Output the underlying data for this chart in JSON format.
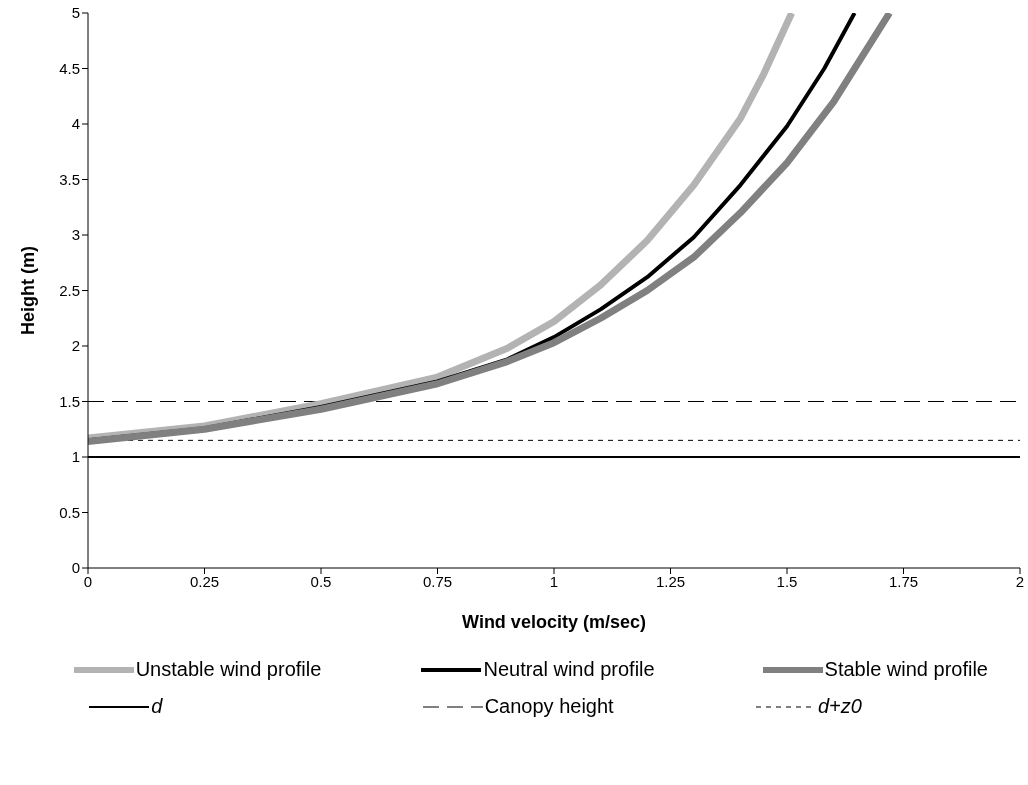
{
  "chart_data": {
    "type": "line",
    "xlabel": "Wind velocity (m/sec)",
    "ylabel": "Height (m)",
    "xlim": [
      0,
      2
    ],
    "xticks": [
      0,
      0.25,
      0.5,
      0.75,
      1,
      1.25,
      1.5,
      1.75,
      2
    ],
    "ylim": [
      0,
      5
    ],
    "yticks": [
      0,
      0.5,
      1,
      1.5,
      2,
      2.5,
      3,
      3.5,
      4,
      4.5,
      5
    ],
    "legend": "bottom",
    "marker": "none",
    "series": [
      {
        "name": "Unstable wind profile",
        "color": "#b3b3b3",
        "x": [
          0,
          0.25,
          0.5,
          0.75,
          0.9,
          1.0,
          1.1,
          1.2,
          1.3,
          1.4,
          1.45,
          1.51
        ],
        "values": [
          1.17,
          1.28,
          1.48,
          1.72,
          1.98,
          2.22,
          2.55,
          2.95,
          3.45,
          4.05,
          4.45,
          5
        ]
      },
      {
        "name": "Neutral wind profile",
        "color": "#000000",
        "x": [
          0,
          0.25,
          0.5,
          0.75,
          0.9,
          1.0,
          1.1,
          1.2,
          1.3,
          1.4,
          1.5,
          1.58,
          1.645
        ],
        "values": [
          1.15,
          1.26,
          1.45,
          1.68,
          1.88,
          2.08,
          2.33,
          2.62,
          2.98,
          3.45,
          3.98,
          4.5,
          5
        ]
      },
      {
        "name": "Stable wind profile",
        "color": "#808080",
        "x": [
          0,
          0.25,
          0.5,
          0.75,
          0.9,
          1.0,
          1.1,
          1.2,
          1.3,
          1.4,
          1.5,
          1.6,
          1.72
        ],
        "values": [
          1.14,
          1.25,
          1.43,
          1.66,
          1.86,
          2.03,
          2.25,
          2.5,
          2.8,
          3.2,
          3.65,
          4.2,
          5
        ]
      }
    ],
    "ref_lines": [
      {
        "axis": "y",
        "value": 1,
        "label": "d",
        "color": "#000000",
        "line_style": "solid"
      },
      {
        "axis": "y",
        "value": 1.5,
        "label": "Canopy height",
        "color": "#000000",
        "line_style": "dashed"
      },
      {
        "axis": "y",
        "value": 1.15,
        "label": "d+z0",
        "color": "#000000",
        "line_style": "dotted"
      }
    ]
  }
}
